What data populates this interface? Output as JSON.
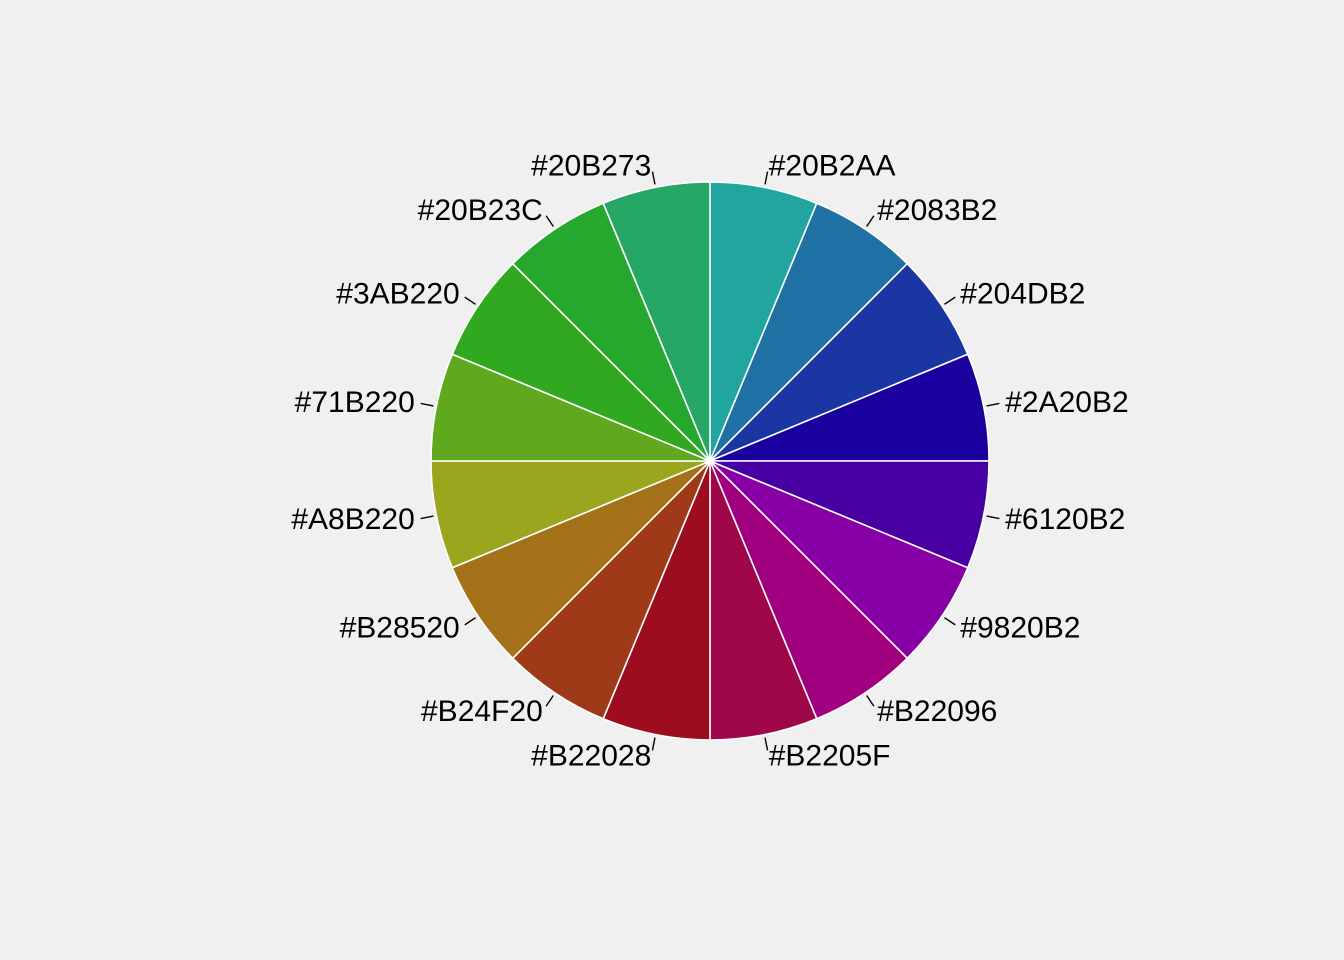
{
  "chart_data": {
    "type": "pie",
    "start_angle_deg": 90,
    "direction": "clockwise",
    "categories": [
      "#20B2AA",
      "#2083B2",
      "#204DB2",
      "#2A20B2",
      "#6120B2",
      "#9820B2",
      "#B22096",
      "#B2205F",
      "#B22028",
      "#B24F20",
      "#B28520",
      "#A8B220",
      "#71B220",
      "#3AB220",
      "#20B23C",
      "#20B273"
    ],
    "values": [
      1,
      1,
      1,
      1,
      1,
      1,
      1,
      1,
      1,
      1,
      1,
      1,
      1,
      1,
      1,
      1
    ],
    "colors": [
      "#20A59F",
      "#1F71A3",
      "#1A36A2",
      "#1B00A0",
      "#4800A2",
      "#8700A6",
      "#A0007F",
      "#A0074B",
      "#9E0D1F",
      "#9E3A18",
      "#A27118",
      "#9AA71E",
      "#60A81E",
      "#30A81F",
      "#26A82E",
      "#26A766"
    ],
    "title": "",
    "legend": "none"
  }
}
